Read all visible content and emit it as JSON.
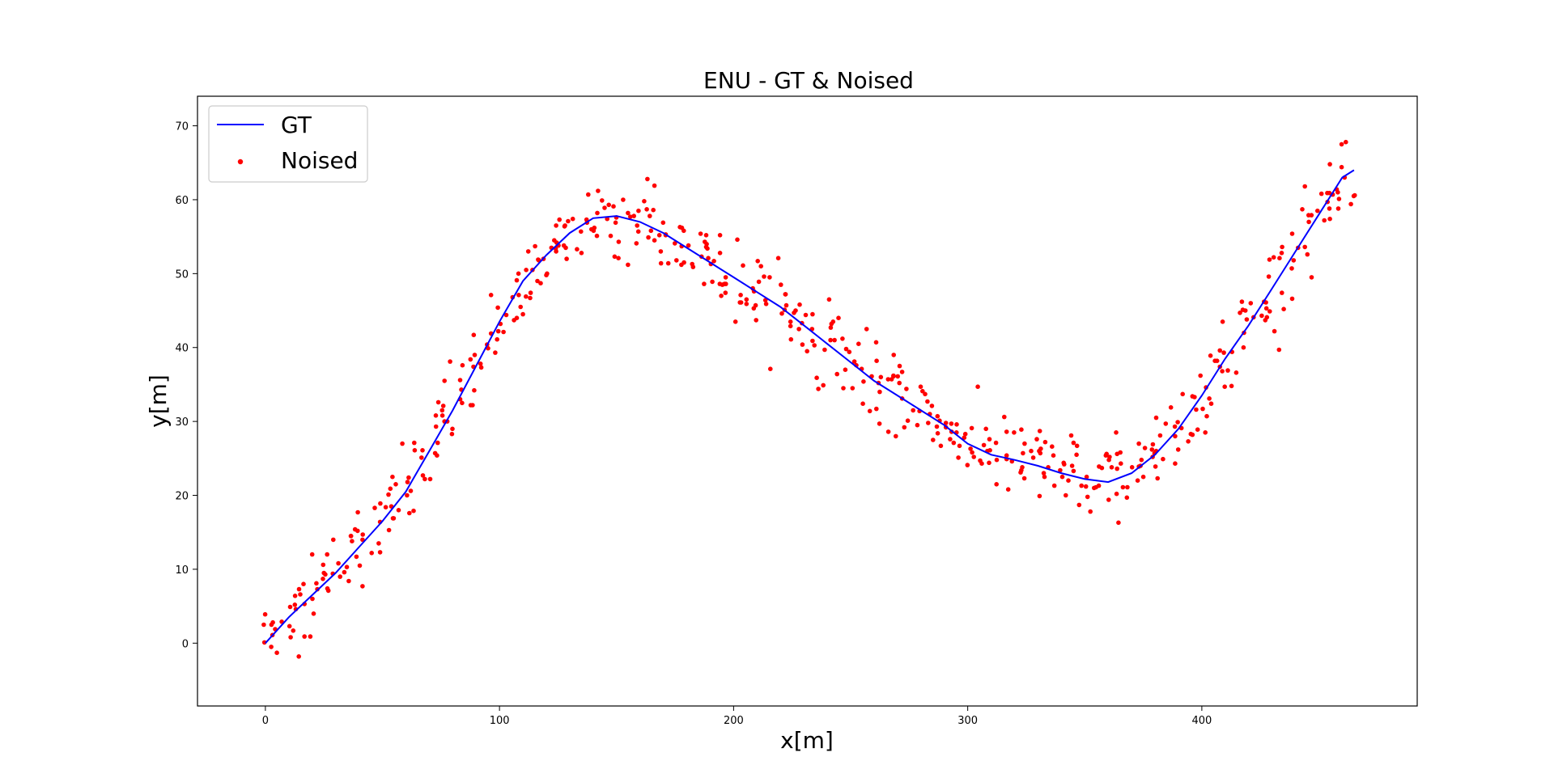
{
  "chart_data": {
    "type": "line",
    "title": "ENU - GT & Noised",
    "xlabel": "x[m]",
    "ylabel": "y[m]",
    "xlim": [
      -29,
      492
    ],
    "ylim": [
      -8.5,
      74
    ],
    "xticks": [
      0,
      100,
      200,
      300,
      400
    ],
    "yticks": [
      0,
      10,
      20,
      30,
      40,
      50,
      60,
      70
    ],
    "grid": false,
    "legend_position": "upper-left",
    "colors": {
      "gt": "#0000ff",
      "noised": "#ff0000",
      "axes": "#000000"
    },
    "series": [
      {
        "name": "GT",
        "kind": "line",
        "x": [
          0,
          10,
          20,
          30,
          40,
          50,
          60,
          70,
          80,
          90,
          100,
          110,
          120,
          130,
          140,
          150,
          160,
          170,
          180,
          190,
          200,
          210,
          220,
          230,
          240,
          250,
          260,
          270,
          280,
          290,
          300,
          310,
          320,
          330,
          340,
          350,
          360,
          370,
          380,
          390,
          400,
          410,
          420,
          430,
          440,
          450,
          460,
          465
        ],
        "y": [
          0,
          3.5,
          6.5,
          9.5,
          13,
          16.5,
          20.5,
          26,
          31.5,
          37.5,
          43.5,
          49,
          52.5,
          55.5,
          57.5,
          57.8,
          57,
          55.5,
          53.5,
          51.5,
          49.5,
          47.5,
          45.5,
          43,
          40.5,
          38,
          35.5,
          33.5,
          31.5,
          29.5,
          27,
          25.5,
          24.8,
          24,
          23,
          22.2,
          21.8,
          23,
          25.5,
          29,
          33.5,
          38.5,
          43,
          48,
          53,
          58,
          63,
          64
        ]
      },
      {
        "name": "Noised",
        "kind": "scatter",
        "x": [],
        "y": []
      }
    ]
  }
}
